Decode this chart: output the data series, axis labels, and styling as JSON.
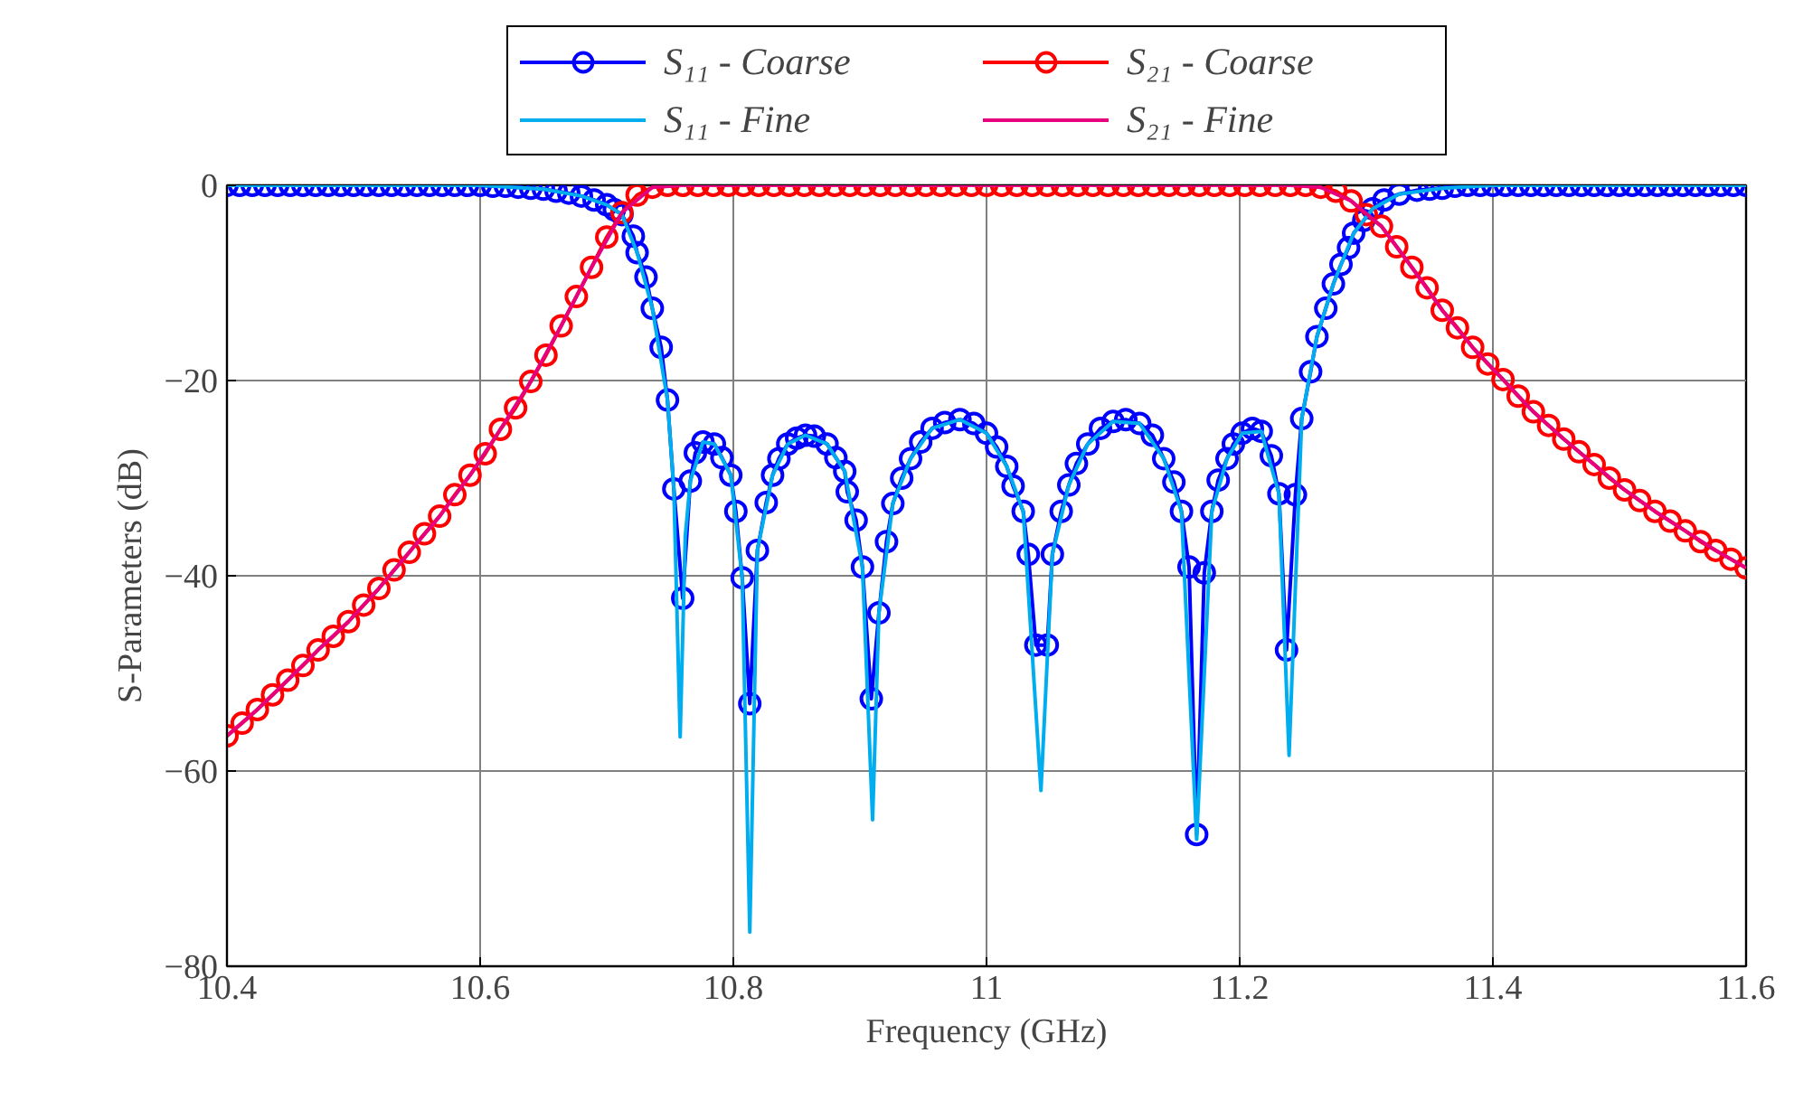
{
  "chart_data": {
    "type": "line",
    "xlabel": "Frequency (GHz)",
    "ylabel": "S-Parameters (dB)",
    "xlim": [
      10.4,
      11.6
    ],
    "ylim": [
      -80,
      0
    ],
    "xticks": [
      10.4,
      10.6,
      10.8,
      11,
      11.2,
      11.4,
      11.6
    ],
    "yticks": [
      {
        "value": -80,
        "label": "−80"
      },
      {
        "value": -60,
        "label": "−60"
      },
      {
        "value": -40,
        "label": "−40"
      },
      {
        "value": -20,
        "label": "−20"
      },
      0
    ],
    "grid": true,
    "legend": "top",
    "series": [
      {
        "name": "S₁₁ - Coarse",
        "color": "#0000ff",
        "marker": "circle",
        "x": [
          10.4,
          10.41,
          10.42,
          10.43,
          10.44,
          10.45,
          10.46,
          10.47,
          10.48,
          10.49,
          10.5,
          10.51,
          10.52,
          10.53,
          10.54,
          10.55,
          10.56,
          10.57,
          10.58,
          10.59,
          10.6,
          10.61,
          10.62,
          10.63,
          10.64,
          10.65,
          10.66,
          10.67,
          10.68,
          10.69,
          10.7,
          10.706,
          10.712,
          10.721,
          10.724,
          10.731,
          10.736,
          10.743,
          10.748,
          10.753,
          10.76,
          10.766,
          10.77,
          10.776,
          10.785,
          10.791,
          10.798,
          10.802,
          10.807,
          10.813,
          10.819,
          10.826,
          10.831,
          10.836,
          10.843,
          10.85,
          10.857,
          10.864,
          10.874,
          10.881,
          10.888,
          10.89,
          10.897,
          10.902,
          10.909,
          10.915,
          10.921,
          10.926,
          10.933,
          10.94,
          10.948,
          10.957,
          10.967,
          10.979,
          10.99,
          11.0,
          11.008,
          11.016,
          11.021,
          11.029,
          11.033,
          11.039,
          11.048,
          11.052,
          11.059,
          11.065,
          11.071,
          11.08,
          11.09,
          11.1,
          11.11,
          11.121,
          11.131,
          11.14,
          11.148,
          11.154,
          11.16,
          11.166,
          11.172,
          11.178,
          11.183,
          11.19,
          11.195,
          11.202,
          11.21,
          11.217,
          11.225,
          11.231,
          11.237,
          11.244,
          11.249,
          11.256,
          11.261,
          11.268,
          11.274,
          11.28,
          11.286,
          11.29,
          11.298,
          11.305,
          11.314,
          11.326,
          11.34,
          11.35,
          11.36,
          11.37,
          11.38,
          11.39,
          11.4,
          11.41,
          11.42,
          11.43,
          11.44,
          11.45,
          11.46,
          11.47,
          11.48,
          11.49,
          11.5,
          11.51,
          11.52,
          11.53,
          11.54,
          11.55,
          11.56,
          11.57,
          11.58,
          11.59,
          11.6
        ],
        "values": [
          0,
          0,
          0,
          0,
          0,
          0,
          0,
          0,
          0,
          0,
          0,
          0,
          0,
          0,
          0,
          0,
          0,
          0,
          0,
          0,
          0,
          -0.1,
          -0.1,
          -0.2,
          -0.3,
          -0.4,
          -0.6,
          -0.8,
          -1.1,
          -1.5,
          -2.0,
          -2.5,
          -3.0,
          -5.2,
          -6.9,
          -9.4,
          -12.6,
          -16.6,
          -22.0,
          -31.1,
          -42.3,
          -30.3,
          -27.4,
          -26.3,
          -26.5,
          -27.9,
          -29.7,
          -33.4,
          -40.2,
          -53.1,
          -37.4,
          -32.5,
          -29.7,
          -28.0,
          -26.5,
          -25.9,
          -25.6,
          -25.7,
          -26.5,
          -27.9,
          -29.3,
          -31.4,
          -34.3,
          -39.1,
          -52.6,
          -43.8,
          -36.5,
          -32.6,
          -30.0,
          -28.0,
          -26.3,
          -24.9,
          -24.3,
          -24.0,
          -24.4,
          -25.4,
          -26.8,
          -28.8,
          -30.8,
          -33.4,
          -37.8,
          -47.1,
          -47.1,
          -37.8,
          -33.4,
          -30.7,
          -28.5,
          -26.5,
          -24.9,
          -24.2,
          -24.0,
          -24.4,
          -25.6,
          -28.0,
          -30.4,
          -33.4,
          -39.1,
          -66.5,
          -39.7,
          -33.4,
          -30.2,
          -28.0,
          -26.5,
          -25.4,
          -24.9,
          -25.2,
          -27.7,
          -31.6,
          -47.6,
          -31.7,
          -23.9,
          -19.1,
          -15.5,
          -12.6,
          -10.1,
          -8.1,
          -6.4,
          -4.9,
          -3.6,
          -2.4,
          -1.5,
          -0.9,
          -0.5,
          -0.4,
          -0.3,
          -0.1,
          0,
          0,
          0,
          0,
          0,
          0,
          0,
          0,
          0,
          0,
          0,
          0,
          0,
          0,
          0,
          0,
          0,
          0,
          0,
          0,
          0,
          0,
          0
        ]
      },
      {
        "name": "S₂₁ - Coarse",
        "color": "#ff0000",
        "marker": "circle",
        "x": [
          10.4,
          10.412,
          10.424,
          10.436,
          10.448,
          10.46,
          10.472,
          10.484,
          10.496,
          10.508,
          10.52,
          10.532,
          10.544,
          10.556,
          10.568,
          10.58,
          10.592,
          10.604,
          10.616,
          10.628,
          10.64,
          10.652,
          10.664,
          10.676,
          10.688,
          10.7,
          10.712,
          10.724,
          10.736,
          10.748,
          10.76,
          10.772,
          10.784,
          10.796,
          10.808,
          10.82,
          10.832,
          10.844,
          10.856,
          10.868,
          10.88,
          10.892,
          10.904,
          10.916,
          10.928,
          10.94,
          10.952,
          10.964,
          10.976,
          10.988,
          11.0,
          11.012,
          11.024,
          11.036,
          11.048,
          11.06,
          11.072,
          11.084,
          11.096,
          11.108,
          11.12,
          11.132,
          11.144,
          11.156,
          11.168,
          11.18,
          11.192,
          11.204,
          11.216,
          11.228,
          11.24,
          11.252,
          11.264,
          11.276,
          11.288,
          11.3,
          11.312,
          11.324,
          11.336,
          11.348,
          11.36,
          11.372,
          11.384,
          11.396,
          11.408,
          11.42,
          11.432,
          11.444,
          11.456,
          11.468,
          11.48,
          11.492,
          11.504,
          11.516,
          11.528,
          11.54,
          11.552,
          11.564,
          11.576,
          11.588,
          11.6
        ],
        "values": [
          -56.4,
          -55.1,
          -53.7,
          -52.2,
          -50.7,
          -49.2,
          -47.6,
          -46.2,
          -44.7,
          -43.0,
          -41.3,
          -39.4,
          -37.6,
          -35.7,
          -33.9,
          -31.7,
          -29.7,
          -27.5,
          -25.0,
          -22.8,
          -20.1,
          -17.4,
          -14.4,
          -11.4,
          -8.4,
          -5.3,
          -2.8,
          -1.0,
          -0.2,
          0,
          0,
          0,
          0,
          0,
          0,
          0,
          0,
          0,
          0,
          0,
          0,
          0,
          0,
          0,
          0,
          0,
          0,
          0,
          0,
          0,
          0,
          0,
          0,
          0,
          0,
          0,
          0,
          0,
          0,
          0,
          0,
          0,
          0,
          0,
          0,
          0,
          0,
          0,
          0,
          0,
          0,
          0,
          -0.2,
          -0.6,
          -1.6,
          -3.0,
          -4.2,
          -6.3,
          -8.4,
          -10.5,
          -12.8,
          -14.6,
          -16.6,
          -18.3,
          -19.9,
          -21.6,
          -23.2,
          -24.6,
          -26.0,
          -27.3,
          -28.6,
          -30.0,
          -31.2,
          -32.3,
          -33.4,
          -34.4,
          -35.4,
          -36.5,
          -37.4,
          -38.3,
          -39.2
        ]
      },
      {
        "name": "S₁₁ - Fine",
        "color": "#00aeef",
        "marker": "none",
        "x": [
          10.4,
          10.5,
          10.6,
          10.65,
          10.68,
          10.7,
          10.712,
          10.724,
          10.736,
          10.748,
          10.753,
          10.758,
          10.762,
          10.766,
          10.776,
          10.785,
          10.798,
          10.807,
          10.813,
          10.819,
          10.831,
          10.843,
          10.857,
          10.874,
          10.888,
          10.902,
          10.91,
          10.915,
          10.926,
          10.94,
          10.957,
          10.979,
          11.0,
          11.016,
          11.029,
          11.043,
          11.052,
          11.065,
          11.08,
          11.1,
          11.121,
          11.14,
          11.154,
          11.166,
          11.178,
          11.19,
          11.202,
          11.217,
          11.231,
          11.239,
          11.249,
          11.261,
          11.274,
          11.29,
          11.305,
          11.326,
          11.36,
          11.4,
          11.5,
          11.6
        ],
        "values": [
          0,
          0,
          0,
          -0.4,
          -1.1,
          -2.0,
          -3.0,
          -6.9,
          -12.6,
          -22.0,
          -31.1,
          -56.5,
          -36.0,
          -30.3,
          -26.3,
          -26.5,
          -29.7,
          -40.2,
          -76.5,
          -37.4,
          -29.7,
          -26.5,
          -25.6,
          -26.5,
          -29.3,
          -39.1,
          -65.0,
          -43.8,
          -32.6,
          -28.0,
          -24.9,
          -24.0,
          -25.4,
          -28.8,
          -33.4,
          -62.0,
          -37.8,
          -30.7,
          -26.5,
          -24.2,
          -24.4,
          -28.0,
          -33.4,
          -67.0,
          -33.4,
          -28.0,
          -25.4,
          -25.2,
          -31.6,
          -58.4,
          -23.9,
          -15.5,
          -10.1,
          -4.9,
          -2.4,
          -0.9,
          -0.3,
          0,
          0,
          0
        ]
      },
      {
        "name": "S₂₁ - Fine",
        "color": "#e6007e",
        "marker": "none",
        "x": [
          10.4,
          10.424,
          10.448,
          10.472,
          10.496,
          10.52,
          10.544,
          10.568,
          10.592,
          10.616,
          10.64,
          10.664,
          10.688,
          10.712,
          10.736,
          10.76,
          11.0,
          11.24,
          11.264,
          11.288,
          11.312,
          11.336,
          11.36,
          11.384,
          11.408,
          11.432,
          11.456,
          11.48,
          11.504,
          11.528,
          11.552,
          11.576,
          11.6
        ],
        "values": [
          -56.4,
          -53.7,
          -50.7,
          -47.6,
          -44.7,
          -41.3,
          -37.6,
          -33.9,
          -29.7,
          -25.0,
          -20.1,
          -14.4,
          -8.4,
          -2.8,
          -0.2,
          0,
          0,
          0,
          -0.2,
          -1.6,
          -4.2,
          -8.4,
          -12.8,
          -16.6,
          -19.9,
          -23.2,
          -26.0,
          -28.6,
          -31.2,
          -33.4,
          -35.4,
          -37.4,
          -39.2
        ]
      }
    ]
  }
}
